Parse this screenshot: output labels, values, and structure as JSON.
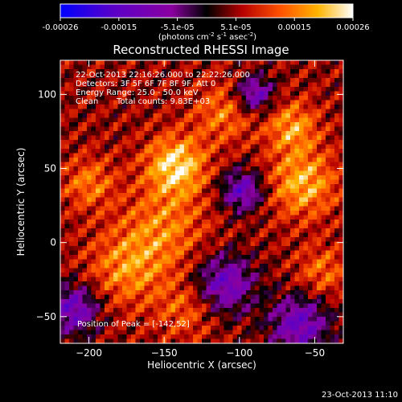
{
  "colorbar": {
    "ticks": [
      "-0.00026",
      "-0.00015",
      "-5.1e-05",
      "5.1e-05",
      "0.00015",
      "0.00026"
    ],
    "unit_label": "(photons cm-2 s-1 asec-2)",
    "colors": [
      "#0000ff",
      "#5a00c8",
      "#8a00a0",
      "#000000",
      "#b40000",
      "#ff5000",
      "#ffb400",
      "#ffffff"
    ]
  },
  "chart_data": {
    "type": "heatmap",
    "title": "Reconstructed RHESSI Image",
    "xlabel": "Heliocentric X (arcsec)",
    "ylabel": "Heliocentric Y (arcsec)",
    "xlim": [
      -219,
      -31
    ],
    "ylim": [
      -68,
      123
    ],
    "xticks": [
      -200,
      -150,
      -100,
      -50
    ],
    "yticks": [
      -50,
      0,
      50,
      100
    ],
    "clim": [
      -0.00026,
      0.00026
    ],
    "peak": {
      "x": -142,
      "y": 52
    },
    "annotations": {
      "time": "22-Oct-2013 22:16:26.000 to 22:22:26.000",
      "detectors": "Detectors: 3F 5F 6F 7F 8F 9F, Att 0",
      "energy": "Energy Range: 25.0 - 50.0 keV",
      "method": "Clean",
      "counts": "Total counts: 9.83E+03",
      "peak_label": "Position of Peak = [-142,52]"
    }
  },
  "footer": {
    "timestamp": "23-Oct-2013 11:10"
  }
}
